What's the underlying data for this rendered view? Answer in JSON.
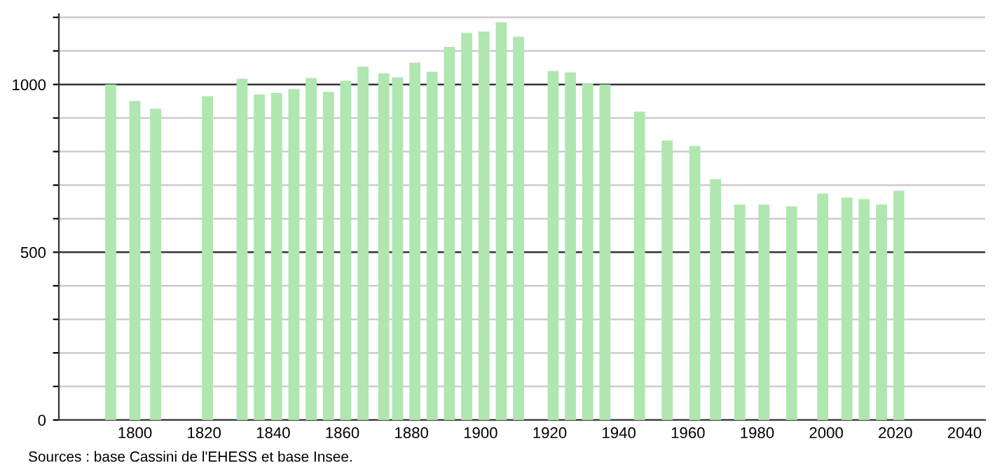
{
  "chart_data": {
    "type": "bar",
    "x": [
      1793,
      1800,
      1806,
      1821,
      1831,
      1836,
      1841,
      1846,
      1851,
      1856,
      1861,
      1866,
      1872,
      1876,
      1881,
      1886,
      1891,
      1896,
      1901,
      1906,
      1911,
      1921,
      1926,
      1931,
      1936,
      1946,
      1954,
      1962,
      1968,
      1975,
      1982,
      1990,
      1999,
      2006,
      2011,
      2016,
      2021
    ],
    "values": [
      1000,
      951,
      928,
      965,
      1017,
      970,
      974,
      986,
      1019,
      978,
      1011,
      1053,
      1033,
      1021,
      1065,
      1038,
      1112,
      1153,
      1158,
      1185,
      1142,
      1040,
      1036,
      1003,
      1000,
      919,
      833,
      817,
      718,
      642,
      642,
      637,
      675,
      663,
      658,
      642,
      683
    ],
    "color": "#b0e6b0",
    "xlim": [
      1778,
      2046
    ],
    "xticks": [
      1800,
      1820,
      1840,
      1860,
      1880,
      1900,
      1920,
      1940,
      1960,
      1980,
      2000,
      2020,
      2040
    ],
    "ylim": [
      0,
      1210
    ],
    "yticks": [
      0,
      {
        "value": 100,
        "label": null
      },
      {
        "value": 200,
        "label": null
      },
      {
        "value": 300,
        "label": null
      },
      {
        "value": 400,
        "label": null
      },
      500,
      {
        "value": 600,
        "label": null
      },
      {
        "value": 700,
        "label": null
      },
      {
        "value": 800,
        "label": null
      },
      {
        "value": 900,
        "label": null
      },
      1000,
      {
        "value": 1100,
        "label": null
      },
      {
        "value": 1200,
        "label": null
      }
    ],
    "grid": "y",
    "annotations": [
      "Sources : base Cassini de l'EHESS et base Insee."
    ]
  }
}
